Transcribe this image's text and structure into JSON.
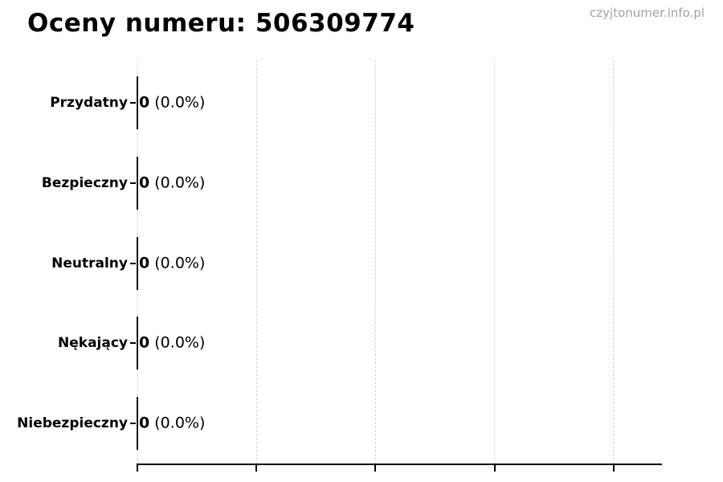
{
  "title": "Oceny numeru: 506309774",
  "watermark": "czyjtonumer.info.pl",
  "chart_data": {
    "type": "bar",
    "orientation": "horizontal",
    "title": "Oceny numeru: 506309774",
    "categories": [
      "Przydatny",
      "Bezpieczny",
      "Neutralny",
      "Nękający",
      "Niebezpieczny"
    ],
    "values": [
      0,
      0,
      0,
      0,
      0
    ],
    "percents": [
      "0.0%",
      "0.0%",
      "0.0%",
      "0.0%",
      "0.0%"
    ],
    "xlabel": "",
    "ylabel": "",
    "xlim": [
      0,
      1.1
    ],
    "xticks": [
      0,
      0.25,
      0.5,
      0.75,
      1.0
    ],
    "xtick_labels_visible": false,
    "grid": true,
    "grid_style": "dashed-vertical",
    "legend": "none",
    "colors": {
      "bar": "#111111",
      "axis": "#000000",
      "gridline": "#d4d4d4",
      "text": "#000000",
      "watermark": "#a2a2a2",
      "background": "#ffffff"
    }
  }
}
